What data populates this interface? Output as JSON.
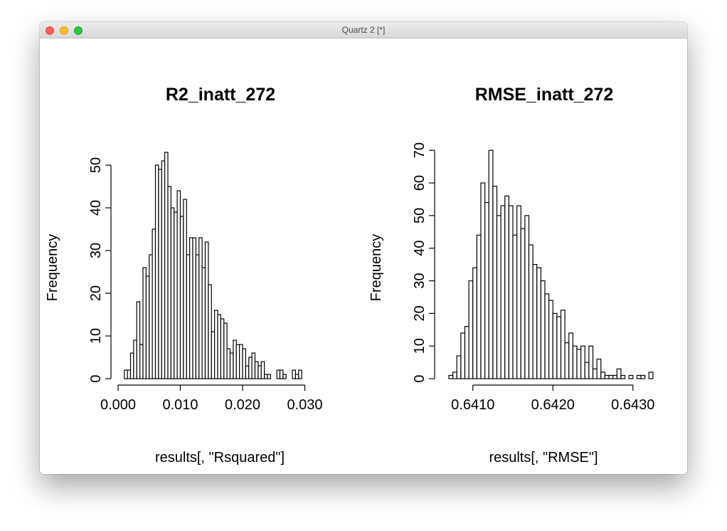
{
  "window": {
    "title": "Quartz 2 [*]"
  },
  "chart_data": [
    {
      "type": "bar",
      "title": "R2_inatt_272",
      "xlabel": "results[, \"Rsquared\"]",
      "ylabel": "Frequency",
      "bin_start": 0.001,
      "bin_width": 0.0005,
      "values": [
        2,
        2,
        6,
        9,
        18,
        8,
        26,
        24,
        29,
        35,
        50,
        49,
        51,
        53,
        45,
        40,
        39,
        44,
        38,
        42,
        29,
        33,
        33,
        29,
        33,
        26,
        32,
        22,
        11,
        16,
        15,
        14,
        13,
        7,
        6,
        9,
        8,
        8,
        7,
        3,
        5,
        6,
        4,
        3,
        4,
        1,
        1,
        0,
        0,
        2,
        2,
        1,
        0,
        0,
        2,
        1,
        2
      ],
      "xlim": [
        0,
        0.032
      ],
      "ylim": [
        0,
        55
      ],
      "x_ticks": [
        "0.000",
        "0.010",
        "0.020",
        "0.030"
      ],
      "x_tick_values": [
        0,
        0.01,
        0.02,
        0.03
      ],
      "y_ticks": [
        "0",
        "10",
        "20",
        "30",
        "40",
        "50"
      ],
      "y_tick_values": [
        0,
        10,
        20,
        30,
        40,
        50
      ]
    },
    {
      "type": "bar",
      "title": "RMSE_inatt_272",
      "xlabel": "results[, \"RMSE\"]",
      "ylabel": "Frequency",
      "bin_start": 0.6407,
      "bin_width": 5e-05,
      "values": [
        1,
        2,
        7,
        14,
        16,
        30,
        34,
        44,
        60,
        54,
        70,
        59,
        50,
        53,
        56,
        53,
        44,
        53,
        46,
        50,
        41,
        35,
        34,
        30,
        26,
        24,
        20,
        19,
        21,
        11,
        14,
        10,
        9,
        10,
        5,
        10,
        3,
        6,
        2,
        1,
        1,
        1,
        3,
        1,
        0,
        1,
        0,
        1,
        1,
        0,
        2
      ],
      "xlim": [
        0.6407,
        0.6431
      ],
      "ylim": [
        0,
        72
      ],
      "x_ticks": [
        "0.6410",
        "0.6420",
        "0.6430"
      ],
      "x_tick_values": [
        0.641,
        0.642,
        0.643
      ],
      "y_ticks": [
        "0",
        "10",
        "20",
        "30",
        "40",
        "50",
        "60",
        "70"
      ],
      "y_tick_values": [
        0,
        10,
        20,
        30,
        40,
        50,
        60,
        70
      ]
    }
  ]
}
